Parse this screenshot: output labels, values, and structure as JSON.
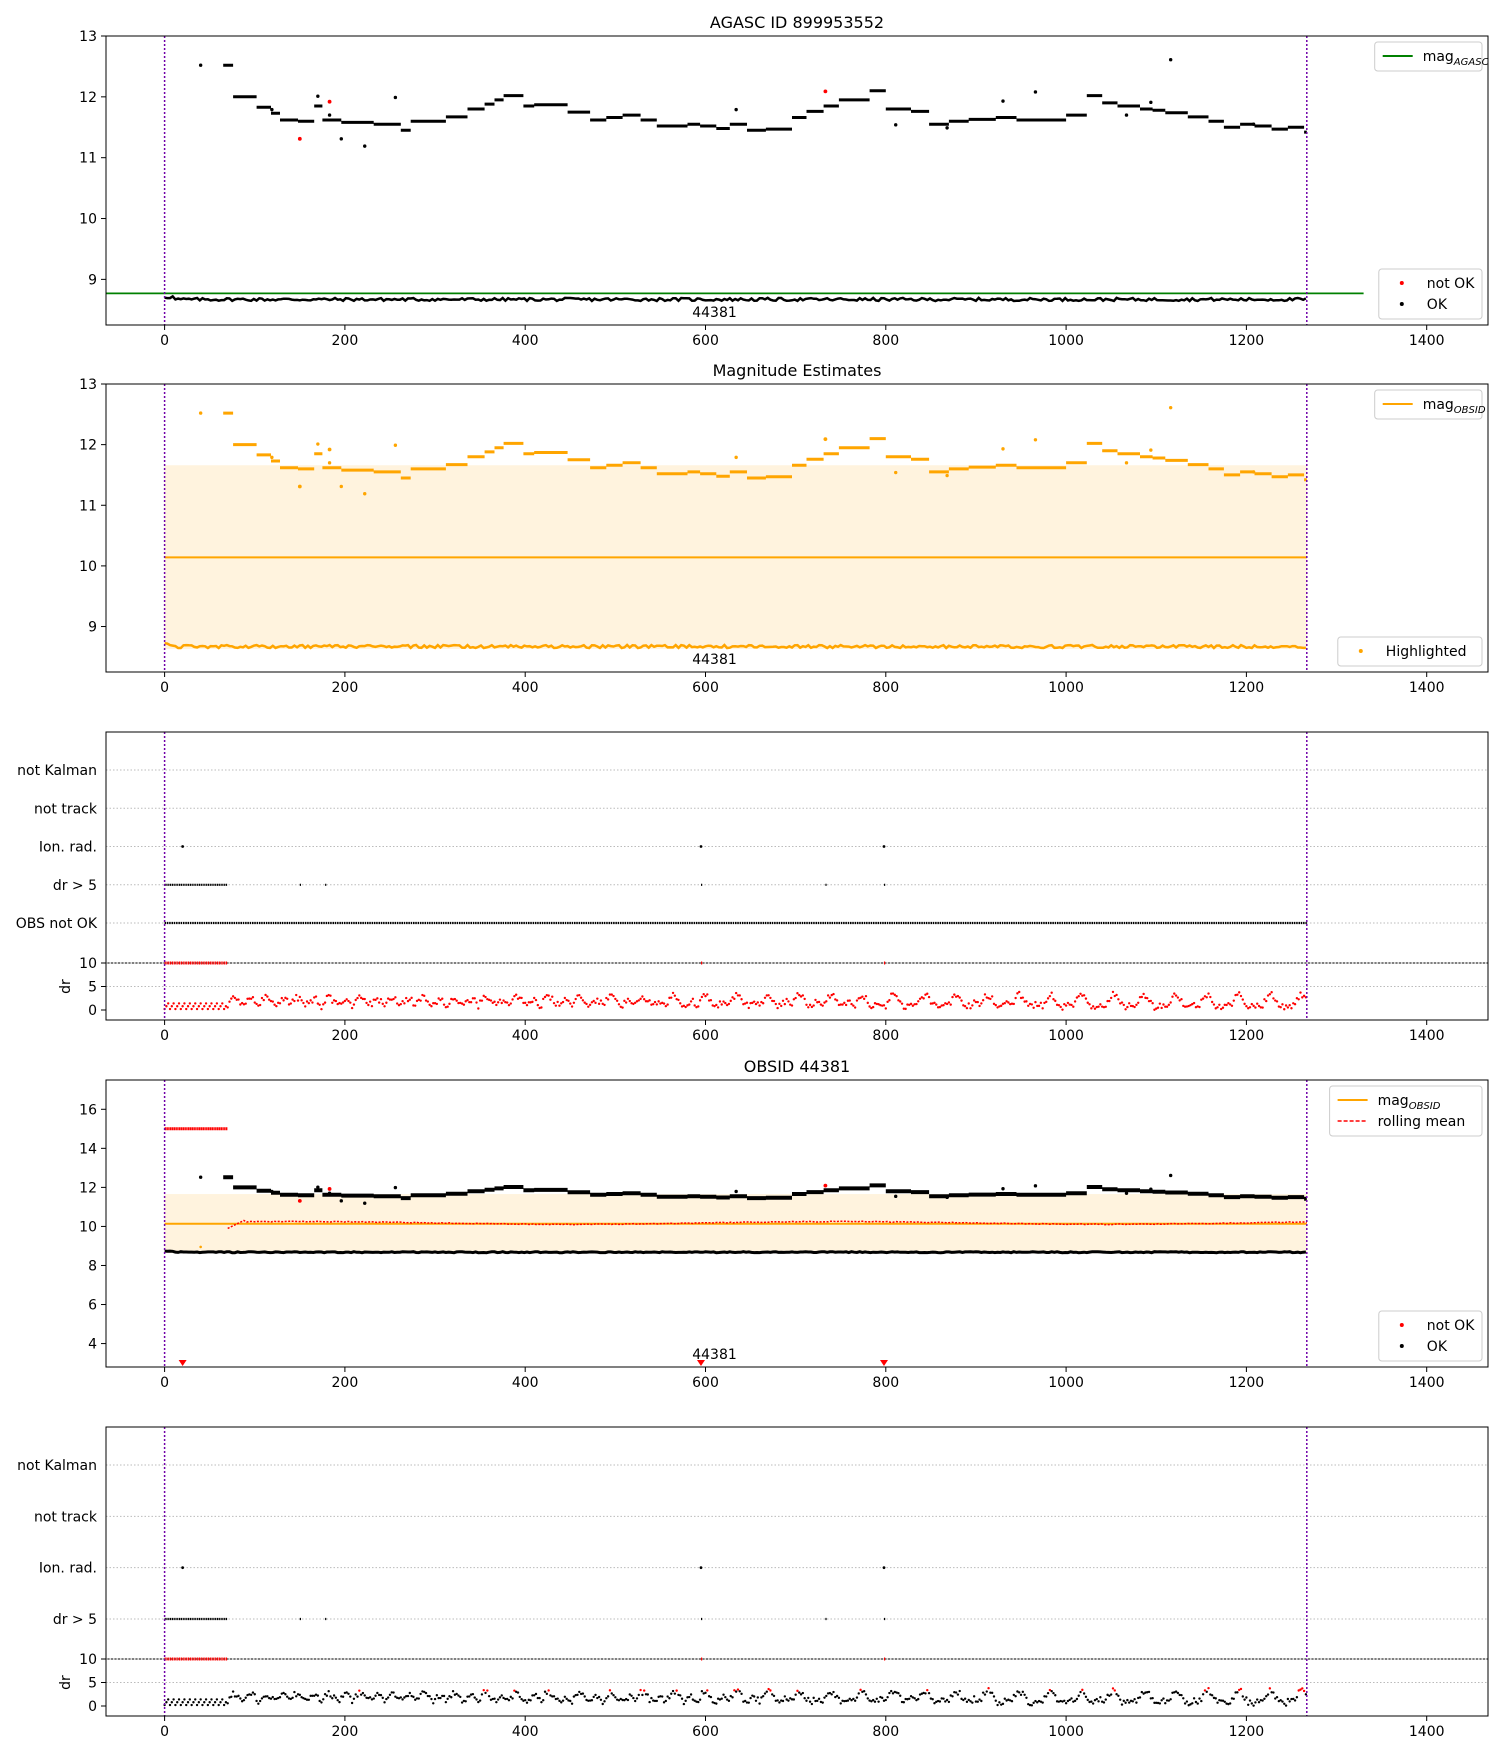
{
  "chart_data": [
    {
      "type": "scatter",
      "title": "AGASC ID 899953552",
      "xlim": [
        -65,
        1468
      ],
      "ylim": [
        8.25,
        13.0
      ],
      "xticks": [
        0,
        200,
        400,
        600,
        800,
        1000,
        1200,
        1400
      ],
      "yticks": [
        9,
        10,
        11,
        12,
        13
      ],
      "obsid_span": [
        0,
        1267
      ],
      "obsid_label": "44381",
      "agasc_mag": 8.77,
      "legends": [
        {
          "placement": "top-right",
          "entries": [
            {
              "label": "mag",
              "sub": "AGASC",
              "color": "#008000",
              "kind": "line"
            }
          ]
        },
        {
          "placement": "bottom-right",
          "entries": [
            {
              "label": "not OK",
              "color": "#ff0000",
              "kind": "dot"
            },
            {
              "label": "OK",
              "color": "#000000",
              "kind": "dot"
            }
          ]
        }
      ],
      "series": [
        {
          "name": "OK",
          "color": "#000000"
        },
        {
          "name": "not OK",
          "color": "#ff0000"
        }
      ]
    },
    {
      "type": "scatter",
      "title": "Magnitude Estimates",
      "xlim": [
        -65,
        1468
      ],
      "ylim": [
        8.25,
        13.0
      ],
      "xticks": [
        0,
        200,
        400,
        600,
        800,
        1000,
        1200,
        1400
      ],
      "yticks": [
        9,
        10,
        11,
        12,
        13
      ],
      "obsid_span": [
        0,
        1267
      ],
      "obsid_label": "44381",
      "mag_obsid": 10.14,
      "band": [
        8.63,
        11.66
      ],
      "legends": [
        {
          "placement": "top-right",
          "entries": [
            {
              "label": "mag",
              "sub": "OBSID",
              "color": "#ffa500",
              "kind": "line"
            }
          ]
        },
        {
          "placement": "bottom-right",
          "entries": [
            {
              "label": "Highlighted",
              "color": "#ffa500",
              "kind": "dot"
            }
          ]
        }
      ],
      "series": [
        {
          "name": "Highlighted",
          "color": "#ffa500"
        }
      ]
    },
    {
      "type": "scatter",
      "title": "",
      "xlim": [
        -65,
        1468
      ],
      "xticks": [
        0,
        200,
        400,
        600,
        800,
        1000,
        1200,
        1400
      ],
      "flags": [
        "not Kalman",
        "not track",
        "Ion. rad.",
        "dr > 5",
        "OBS not OK"
      ],
      "dr_ylabel": "dr",
      "dr_ylim": [
        0,
        10
      ],
      "dr_yticks": [
        0,
        5,
        10
      ]
    },
    {
      "type": "scatter",
      "title": "OBSID 44381",
      "xlim": [
        -65,
        1468
      ],
      "ylim": [
        2.8,
        17.5
      ],
      "xticks": [
        0,
        200,
        400,
        600,
        800,
        1000,
        1200,
        1400
      ],
      "yticks": [
        4,
        6,
        8,
        10,
        12,
        14,
        16
      ],
      "obsid_span": [
        0,
        1267
      ],
      "obsid_label": "44381",
      "mag_obsid": 10.14,
      "band": [
        8.63,
        11.66
      ],
      "legends": [
        {
          "placement": "top-right",
          "entries": [
            {
              "label": "mag",
              "sub": "OBSID",
              "color": "#ffa500",
              "kind": "line"
            },
            {
              "label": "rolling mean",
              "color": "#ff0000",
              "kind": "dash"
            }
          ]
        },
        {
          "placement": "bottom-right",
          "entries": [
            {
              "label": "not OK",
              "color": "#ff0000",
              "kind": "dot"
            },
            {
              "label": "OK",
              "color": "#000000",
              "kind": "dot"
            }
          ]
        }
      ],
      "series": [
        {
          "name": "OK",
          "color": "#000000"
        },
        {
          "name": "not OK",
          "color": "#ff0000"
        },
        {
          "name": "rolling mean",
          "color": "#ff0000"
        }
      ]
    },
    {
      "type": "scatter",
      "title": "",
      "xlim": [
        -65,
        1468
      ],
      "xticks": [
        0,
        200,
        400,
        600,
        800,
        1000,
        1200,
        1400
      ],
      "flags": [
        "not Kalman",
        "not track",
        "Ion. rad.",
        "dr > 5"
      ],
      "dr_ylabel": "dr",
      "dr_ylim": [
        0,
        10
      ],
      "dr_yticks": [
        0,
        5,
        10
      ]
    }
  ]
}
